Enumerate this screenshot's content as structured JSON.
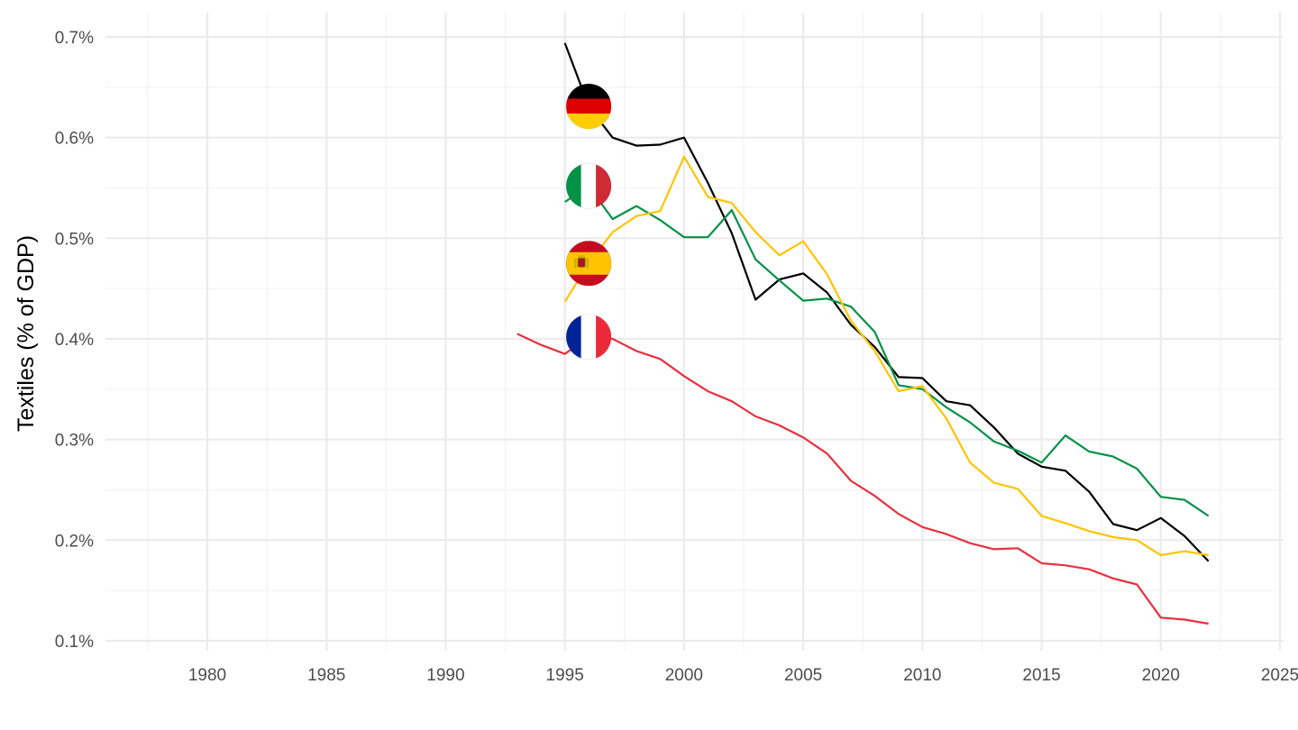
{
  "chart_data": {
    "type": "line",
    "ylabel": "Textiles (% of GDP)",
    "xlim": [
      1975,
      2025
    ],
    "ylim": [
      0.1,
      0.7
    ],
    "x_ticks": [
      1980,
      1985,
      1990,
      1995,
      2000,
      2005,
      2010,
      2015,
      2020,
      2025
    ],
    "y_ticks": [
      0.1,
      0.2,
      0.3,
      0.4,
      0.5,
      0.6,
      0.7
    ],
    "y_tick_labels": [
      "0.1%",
      "0.2%",
      "0.3%",
      "0.4%",
      "0.5%",
      "0.6%",
      "0.7%"
    ],
    "grid": true,
    "legend": "flag icons on lines",
    "series": [
      {
        "flag": "germany-flag-icon",
        "color": "#000000",
        "flag_year": 1996,
        "x": [
          1995,
          1996,
          1997,
          1998,
          1999,
          2000,
          2001,
          2002,
          2003,
          2004,
          2005,
          2006,
          2007,
          2008,
          2009,
          2010,
          2011,
          2012,
          2013,
          2014,
          2015,
          2016,
          2017,
          2018,
          2019,
          2020,
          2021,
          2022
        ],
        "values": [
          0.694,
          0.631,
          0.6,
          0.592,
          0.593,
          0.6,
          0.555,
          0.505,
          0.439,
          0.459,
          0.465,
          0.446,
          0.414,
          0.392,
          0.362,
          0.361,
          0.338,
          0.334,
          0.312,
          0.286,
          0.273,
          0.269,
          0.248,
          0.216,
          0.21,
          0.222,
          0.204,
          0.179
        ]
      },
      {
        "flag": "italy-flag-icon",
        "color": "#009246",
        "flag_year": 1996,
        "x": [
          1995,
          1996,
          1997,
          1998,
          1999,
          2000,
          2001,
          2002,
          2003,
          2004,
          2005,
          2006,
          2007,
          2008,
          2009,
          2010,
          2011,
          2012,
          2013,
          2014,
          2015,
          2016,
          2017,
          2018,
          2019,
          2020,
          2021,
          2022
        ],
        "values": [
          0.536,
          0.552,
          0.519,
          0.532,
          0.518,
          0.501,
          0.501,
          0.528,
          0.479,
          0.458,
          0.438,
          0.44,
          0.432,
          0.407,
          0.354,
          0.35,
          0.332,
          0.317,
          0.298,
          0.289,
          0.277,
          0.304,
          0.288,
          0.283,
          0.271,
          0.243,
          0.24,
          0.224
        ]
      },
      {
        "flag": "spain-flag-icon",
        "color": "#FFC400",
        "flag_year": 1996,
        "x": [
          1995,
          1996,
          1997,
          1998,
          1999,
          2000,
          2001,
          2002,
          2003,
          2004,
          2005,
          2006,
          2007,
          2008,
          2009,
          2010,
          2011,
          2012,
          2013,
          2014,
          2015,
          2016,
          2017,
          2018,
          2019,
          2020,
          2021,
          2022
        ],
        "values": [
          0.437,
          0.475,
          0.506,
          0.522,
          0.527,
          0.581,
          0.541,
          0.535,
          0.506,
          0.483,
          0.497,
          0.464,
          0.418,
          0.388,
          0.348,
          0.353,
          0.321,
          0.277,
          0.257,
          0.251,
          0.224,
          0.217,
          0.209,
          0.203,
          0.2,
          0.185,
          0.189,
          0.185
        ]
      },
      {
        "flag": "france-flag-icon",
        "color": "#E8303F",
        "flag_year": 1996,
        "x": [
          1993,
          1994,
          1995,
          1996,
          1997,
          1998,
          1999,
          2000,
          2001,
          2002,
          2003,
          2004,
          2005,
          2006,
          2007,
          2008,
          2009,
          2010,
          2011,
          2012,
          2013,
          2014,
          2015,
          2016,
          2017,
          2018,
          2019,
          2020,
          2021,
          2022
        ],
        "values": [
          0.405,
          0.394,
          0.385,
          0.402,
          0.4,
          0.388,
          0.38,
          0.363,
          0.348,
          0.338,
          0.323,
          0.314,
          0.302,
          0.286,
          0.259,
          0.244,
          0.226,
          0.213,
          0.206,
          0.197,
          0.191,
          0.192,
          0.177,
          0.175,
          0.171,
          0.162,
          0.156,
          0.123,
          0.121,
          0.117
        ]
      }
    ]
  }
}
